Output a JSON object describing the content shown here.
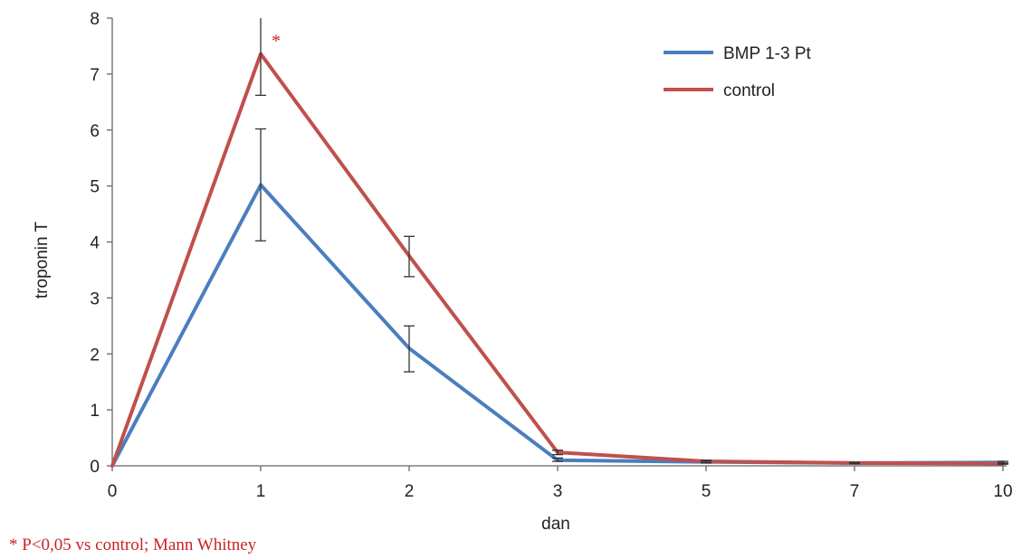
{
  "chart_data": {
    "type": "line",
    "title": "",
    "xlabel": "dan",
    "ylabel": "troponin T",
    "categories": [
      "0",
      "1",
      "2",
      "3",
      "5",
      "7",
      "10"
    ],
    "yticks": [
      "0",
      "1",
      "2",
      "3",
      "4",
      "5",
      "6",
      "7",
      "8"
    ],
    "ylim": [
      0,
      8
    ],
    "grid": false,
    "legend_position": "top-right",
    "series": [
      {
        "name": "BMP 1-3 Pt",
        "color": "#4a7ebf",
        "values": [
          0,
          5.02,
          2.1,
          0.1,
          0.07,
          0.05,
          0.06
        ],
        "error_low": [
          null,
          4.02,
          1.68,
          0.08,
          0.05,
          0.04,
          0.04
        ],
        "error_high": [
          null,
          6.02,
          2.5,
          0.14,
          0.09,
          0.06,
          0.08
        ]
      },
      {
        "name": "control",
        "color": "#c0504d",
        "values": [
          0,
          7.36,
          3.75,
          0.24,
          0.08,
          0.05,
          0.04
        ],
        "error_low": [
          null,
          6.62,
          3.38,
          0.2,
          0.06,
          0.04,
          0.03
        ],
        "error_high": [
          null,
          8.0,
          4.1,
          0.28,
          0.1,
          0.06,
          0.05
        ]
      }
    ],
    "annotations": [
      {
        "text": "*",
        "category_index": 1,
        "y": 7.52,
        "color": "#cc2222"
      }
    ]
  },
  "footnote": {
    "text": "* P<0,05 vs control; Mann Whitney",
    "color": "#cc2222"
  }
}
